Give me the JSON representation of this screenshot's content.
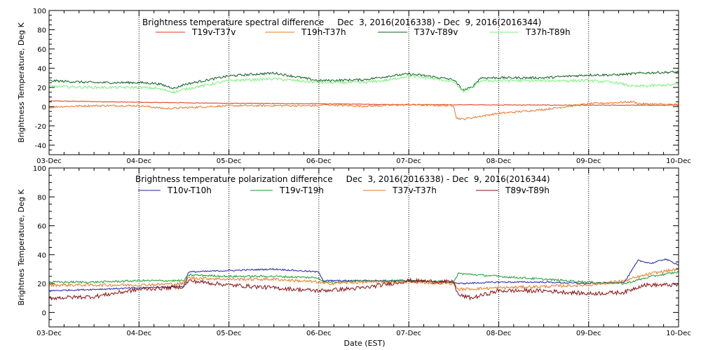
{
  "figure": {
    "xlabel": "Date (EST)"
  },
  "chart_data": [
    {
      "type": "line",
      "title": "Brightness temperature spectral difference     Dec  3, 2016(2016338) - Dec  9, 2016(2016344)",
      "ylabel": "Brightness Temperature, Deg K",
      "xlabel": "Date (EST)",
      "x_unit": "days since 03-Dec",
      "xlim": [
        0,
        7
      ],
      "ylim": [
        -50,
        100
      ],
      "yticks": [
        -40,
        -20,
        0,
        20,
        40,
        60,
        80,
        100
      ],
      "xticks": [
        {
          "value": 0,
          "label": "03-Dec"
        },
        {
          "value": 1,
          "label": "04-Dec"
        },
        {
          "value": 2,
          "label": "05-Dec"
        },
        {
          "value": 3,
          "label": "06-Dec"
        },
        {
          "value": 4,
          "label": "07-Dec"
        },
        {
          "value": 5,
          "label": "08-Dec"
        },
        {
          "value": 6,
          "label": "09-Dec"
        },
        {
          "value": 7,
          "label": "10-Dec"
        }
      ],
      "series": [
        {
          "name": "T19v-T37v",
          "color": "#e0301e",
          "noise": 0.3,
          "x": [
            0,
            1,
            2,
            3,
            4,
            5,
            6,
            7
          ],
          "y": [
            6,
            4.5,
            3.5,
            3,
            2,
            1.8,
            1.5,
            1.5
          ]
        },
        {
          "name": "T19h-T37h",
          "color": "#e87722",
          "noise": 1.0,
          "x": [
            0,
            0.1,
            0.5,
            1,
            1.3,
            2,
            3,
            3.05,
            3.5,
            4,
            4.5,
            4.53,
            4.6,
            4.8,
            5,
            5.5,
            6,
            6.5,
            6.55,
            7
          ],
          "y": [
            -1,
            0,
            1,
            1,
            -2,
            1,
            1,
            2,
            0.5,
            2,
            1,
            -12,
            -13,
            -10,
            -7,
            -3,
            3,
            5,
            3,
            2
          ]
        },
        {
          "name": "T37v-T89v",
          "color": "#0b5d1e",
          "noise": 1.2,
          "x": [
            0,
            0.5,
            1,
            1.2,
            1.4,
            1.5,
            2,
            2.5,
            3,
            3.5,
            3.8,
            4,
            4.2,
            4.5,
            4.6,
            4.7,
            4.8,
            5,
            5.5,
            6,
            6.3,
            6.6,
            7
          ],
          "y": [
            27,
            25,
            25,
            24,
            19,
            23,
            32,
            35,
            27,
            28,
            32,
            34,
            32,
            28,
            17,
            20,
            30,
            30,
            30,
            33,
            33,
            35,
            36
          ]
        },
        {
          "name": "T37h-T89h",
          "color": "#7cf27c",
          "noise": 1.4,
          "x": [
            0,
            0.5,
            1,
            1.2,
            1.4,
            1.5,
            2,
            2.5,
            3,
            3.5,
            3.8,
            4,
            4.2,
            4.5,
            4.6,
            4.7,
            4.8,
            5,
            5.5,
            6,
            6.3,
            6.5,
            7
          ],
          "y": [
            21,
            20,
            20,
            19,
            15,
            18,
            27,
            29,
            25,
            25,
            28,
            32,
            30,
            26,
            16,
            19,
            27,
            27,
            27,
            27,
            25,
            21,
            23
          ]
        }
      ]
    },
    {
      "type": "line",
      "title": "Brightness temperature polarization difference     Dec  3, 2016(2016338) - Dec  9, 2016(2016344)",
      "ylabel": "Brightnes Temperature, Deg K",
      "xlabel": "Date (EST)",
      "x_unit": "days since 03-Dec",
      "xlim": [
        0,
        7
      ],
      "ylim": [
        -10,
        100
      ],
      "yticks": [
        0,
        20,
        40,
        60,
        80,
        100
      ],
      "xticks": [
        {
          "value": 0,
          "label": "03-Dec"
        },
        {
          "value": 1,
          "label": "04-Dec"
        },
        {
          "value": 2,
          "label": "05-Dec"
        },
        {
          "value": 3,
          "label": "06-Dec"
        },
        {
          "value": 4,
          "label": "07-Dec"
        },
        {
          "value": 5,
          "label": "08-Dec"
        },
        {
          "value": 6,
          "label": "09-Dec"
        },
        {
          "value": 7,
          "label": "10-Dec"
        }
      ],
      "series": [
        {
          "name": "T10v-T10h",
          "color": "#1f1fa8",
          "noise": 0.5,
          "x": [
            0,
            0.5,
            1,
            1.5,
            1.55,
            2,
            2.5,
            3,
            3.05,
            3.5,
            4,
            4.5,
            4.55,
            5,
            5.5,
            6,
            6.4,
            6.55,
            6.7,
            6.85,
            7
          ],
          "y": [
            15,
            16,
            17,
            18,
            28,
            29,
            30,
            28,
            22,
            22,
            22,
            21,
            20,
            21,
            21,
            20,
            21,
            36,
            34,
            37,
            33
          ]
        },
        {
          "name": "T19v-T19h",
          "color": "#1d9a2e",
          "noise": 0.7,
          "x": [
            0,
            0.5,
            1,
            1.5,
            1.55,
            2,
            2.5,
            3,
            3.05,
            3.5,
            4,
            4.5,
            4.55,
            5,
            5.5,
            6,
            6.4,
            6.7,
            7
          ],
          "y": [
            21,
            21,
            22,
            22,
            26,
            25,
            25,
            24,
            21,
            22,
            22,
            21,
            27,
            25,
            23,
            21,
            20,
            25,
            28
          ]
        },
        {
          "name": "T37v-T37h",
          "color": "#e87722",
          "noise": 1.0,
          "x": [
            0,
            0.5,
            1,
            1.5,
            1.55,
            2,
            2.5,
            3,
            3.05,
            3.5,
            4,
            4.5,
            4.55,
            5,
            5.5,
            6,
            6.4,
            6.7,
            7
          ],
          "y": [
            19,
            19,
            19,
            20,
            24,
            23,
            23,
            21,
            20,
            21,
            21,
            20,
            16,
            17,
            18,
            19,
            22,
            27,
            30
          ]
        },
        {
          "name": "T89v-T89h",
          "color": "#8b1010",
          "noise": 1.4,
          "x": [
            0,
            0.5,
            1,
            1.3,
            1.5,
            1.55,
            2,
            2.5,
            3,
            3.5,
            4,
            4.5,
            4.55,
            4.7,
            5,
            5.5,
            6,
            6.4,
            6.6,
            7
          ],
          "y": [
            10,
            11,
            16,
            17,
            18,
            22,
            19,
            17,
            15,
            17,
            22,
            21,
            12,
            10,
            15,
            15,
            13,
            14,
            19,
            19
          ]
        }
      ]
    }
  ]
}
